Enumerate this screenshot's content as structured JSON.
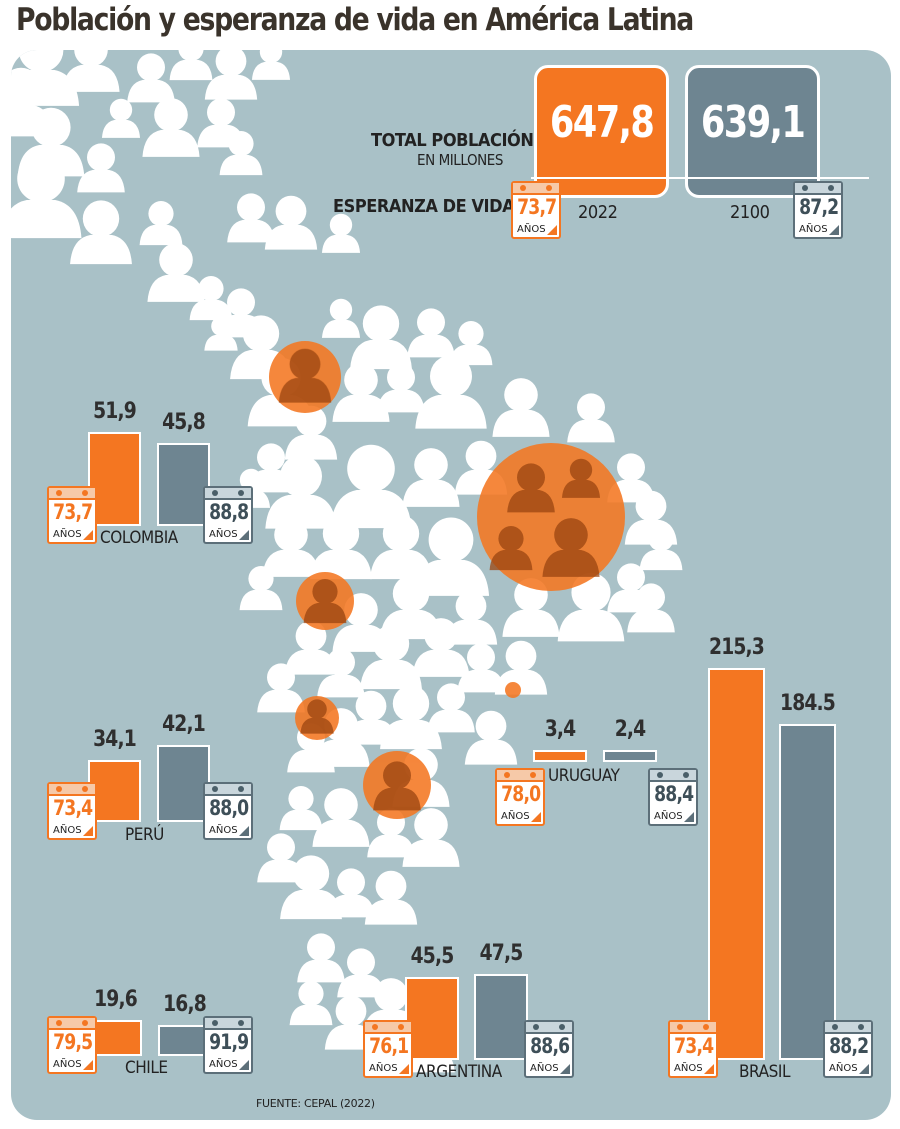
{
  "title": "Población y esperanza de vida en América Latina",
  "header": {
    "total_label_line1": "TOTAL POBLACIÓN",
    "total_label_line2": "EN MILLONES",
    "life_label": "ESPERANZA DE VIDA",
    "total_2022": "647,8",
    "total_2100": "639,1",
    "year_2022": "2022",
    "year_2100": "2100",
    "life_2022": "73,7",
    "life_2100": "87,2",
    "unit": "AÑOS"
  },
  "source": "FUENTE: CEPAL (2022)",
  "colors": {
    "y2022": "#f47621",
    "y2100": "#6e8591",
    "panel": "#a9c1c7"
  },
  "chart_data": {
    "type": "bar",
    "categories": [
      "COLOMBIA",
      "PERÚ",
      "CHILE",
      "ARGENTINA",
      "URUGUAY",
      "BRASIL"
    ],
    "series": [
      {
        "name": "2022",
        "values": [
          51.9,
          34.1,
          19.6,
          45.5,
          3.4,
          215.3
        ]
      },
      {
        "name": "2100",
        "values": [
          45.8,
          42.1,
          16.8,
          47.5,
          2.4,
          184.5
        ]
      }
    ],
    "population_labels_2022": [
      "51,9",
      "34,1",
      "19,6",
      "45,5",
      "3,4",
      "215,3"
    ],
    "population_labels_2100": [
      "45,8",
      "42,1",
      "16,8",
      "47,5",
      "2,4",
      "184.5"
    ],
    "life_expectancy_2022": [
      "73,7",
      "73,4",
      "79,5",
      "76,1",
      "78,0",
      "73,4"
    ],
    "life_expectancy_2100": [
      "88,8",
      "88,0",
      "91,9",
      "88,6",
      "88,4",
      "88,2"
    ],
    "unit": "AÑOS"
  }
}
